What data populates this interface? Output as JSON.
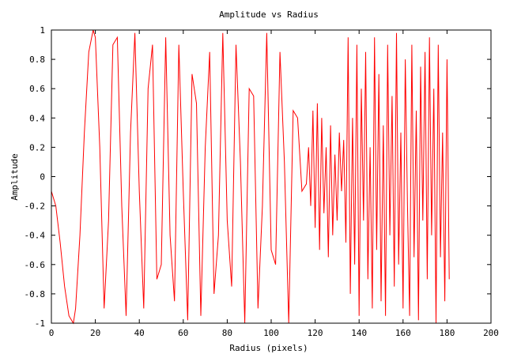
{
  "chart_data": {
    "type": "line",
    "title": "Amplitude vs Radius",
    "xlabel": "Radius (pixels)",
    "ylabel": "Amplitude",
    "xlim": [
      0,
      200
    ],
    "ylim": [
      -1,
      1
    ],
    "x_ticks": [
      0,
      20,
      40,
      60,
      80,
      100,
      120,
      140,
      160,
      180,
      200
    ],
    "y_ticks": [
      1,
      0.8,
      0.6,
      0.4,
      0.2,
      0,
      -0.2,
      -0.4,
      -0.6,
      -0.8,
      -1
    ],
    "x_tick_labels": [
      "0",
      "20",
      "40",
      "60",
      "80",
      "100",
      "120",
      "140",
      "160",
      "180",
      "200"
    ],
    "y_tick_labels": [
      "1",
      "0.8",
      "0.6",
      "0.4",
      "0.2",
      "0",
      "-0.2",
      "-0.4",
      "-0.6",
      "-0.8",
      "-1"
    ],
    "grid": false,
    "legend": "none",
    "series": [
      {
        "color": "#ff0000",
        "x": [
          0,
          2,
          4,
          6,
          8,
          10,
          11,
          13,
          15,
          17,
          19,
          20,
          22,
          24,
          26,
          28,
          30,
          32,
          34,
          36,
          38,
          40,
          42,
          44,
          46,
          48,
          50,
          52,
          54,
          56,
          58,
          60,
          62,
          64,
          66,
          68,
          70,
          72,
          74,
          76,
          78,
          80,
          82,
          84,
          86,
          88,
          90,
          92,
          94,
          96,
          98,
          100,
          102,
          104,
          106,
          108,
          110,
          112,
          114,
          116,
          117,
          118,
          119,
          120,
          121,
          122,
          123,
          124,
          125,
          126,
          127,
          128,
          129,
          130,
          131,
          132,
          133,
          134,
          135,
          136,
          137,
          138,
          139,
          140,
          141,
          142,
          143,
          144,
          145,
          146,
          147,
          148,
          149,
          150,
          151,
          152,
          153,
          154,
          155,
          156,
          157,
          158,
          159,
          160,
          161,
          162,
          163,
          164,
          165,
          166,
          167,
          168,
          169,
          170,
          171,
          172,
          173,
          174,
          175,
          176,
          177,
          178,
          179,
          180,
          181
        ],
        "y": [
          -0.1,
          -0.2,
          -0.45,
          -0.75,
          -0.95,
          -1.0,
          -0.9,
          -0.4,
          0.3,
          0.85,
          1.0,
          0.95,
          0.2,
          -0.9,
          -0.3,
          0.9,
          0.95,
          -0.2,
          -0.95,
          0.3,
          0.98,
          -0.1,
          -0.9,
          0.6,
          0.9,
          -0.7,
          -0.6,
          0.95,
          -0.4,
          -0.85,
          0.9,
          -0.1,
          -0.98,
          0.7,
          0.5,
          -0.95,
          0.2,
          0.85,
          -0.8,
          -0.4,
          0.98,
          -0.3,
          -0.75,
          0.9,
          0.1,
          -1.0,
          0.6,
          0.55,
          -0.9,
          -0.2,
          0.98,
          -0.5,
          -0.6,
          0.85,
          0.1,
          -1.0,
          0.45,
          0.4,
          -0.1,
          -0.05,
          0.2,
          -0.2,
          0.45,
          -0.35,
          0.5,
          -0.5,
          0.4,
          -0.25,
          0.2,
          -0.55,
          0.35,
          -0.4,
          0.15,
          -0.3,
          0.3,
          -0.1,
          0.25,
          -0.45,
          0.95,
          -0.8,
          0.4,
          -0.6,
          0.9,
          -0.95,
          0.6,
          -0.3,
          0.85,
          -0.7,
          0.2,
          -0.9,
          0.95,
          -0.5,
          0.7,
          -0.85,
          0.35,
          -0.95,
          0.9,
          -0.4,
          0.55,
          -0.75,
          0.98,
          -0.6,
          0.3,
          -0.9,
          0.8,
          -0.2,
          -0.95,
          0.9,
          -0.55,
          0.45,
          -0.98,
          0.75,
          -0.3,
          0.85,
          -0.7,
          0.95,
          -0.4,
          0.6,
          -1.0,
          0.9,
          -0.55,
          0.3,
          -0.85,
          0.8,
          -0.7
        ]
      }
    ]
  }
}
